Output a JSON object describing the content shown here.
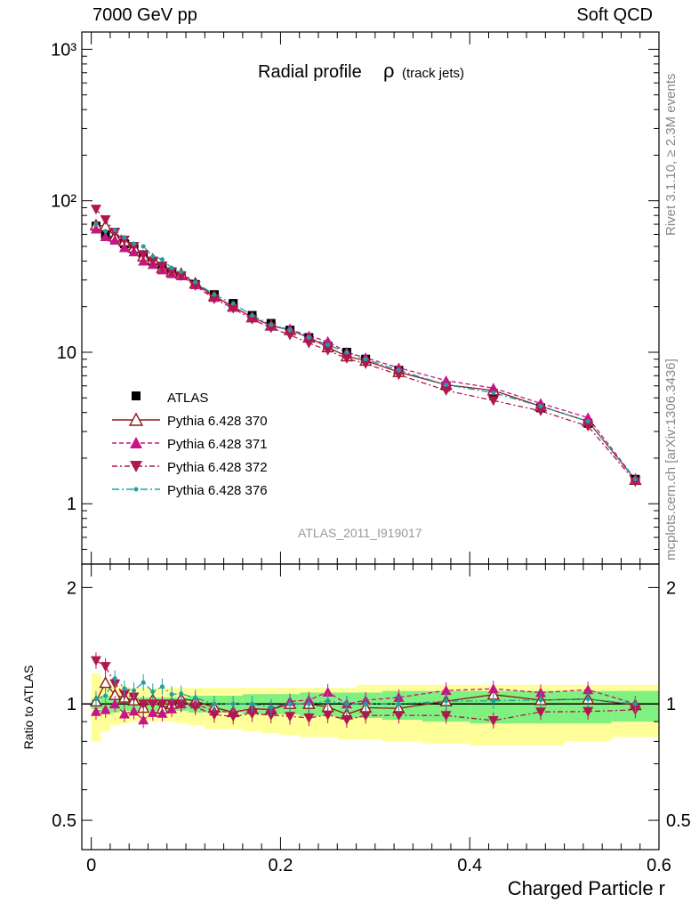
{
  "header": {
    "left": "7000 GeV pp",
    "right": "Soft QCD"
  },
  "side_labels": {
    "top": "Rivet 3.1.10, ≥ 2.3M events",
    "bottom": "mcplots.cern.ch [arXiv:1306.3436]"
  },
  "chart_data": {
    "type": "scatter",
    "title": "Radial profile",
    "title_symbol": "ρ",
    "title_suffix": "(track jets)",
    "watermark": "ATLAS_2011_I919017",
    "xlabel": "Charged Particle r",
    "ratio_ylabel": "Ratio to ATLAS",
    "xlim": [
      -0.01,
      0.6
    ],
    "ylim": [
      0.4,
      1300
    ],
    "ylog": true,
    "ratio_ylim": [
      0.42,
      2.3
    ],
    "ratio_log": true,
    "x_ticks": [
      "0",
      "0.2",
      "0.4",
      "0.6"
    ],
    "y_ticks": [
      "1",
      "10",
      "10²",
      "10³"
    ],
    "ratio_ticks": [
      "0.5",
      "1",
      "2"
    ],
    "legend_position": "lower-left",
    "x": [
      0.005,
      0.015,
      0.025,
      0.035,
      0.045,
      0.055,
      0.065,
      0.075,
      0.085,
      0.095,
      0.11,
      0.13,
      0.15,
      0.17,
      0.19,
      0.21,
      0.23,
      0.25,
      0.27,
      0.29,
      0.325,
      0.375,
      0.425,
      0.475,
      0.525,
      0.575
    ],
    "colors": {
      "data": "#000000",
      "s370": "#8b1a1a",
      "s371": "#c71585",
      "s372": "#b0174f",
      "s376": "#20a0a0",
      "band_outer": "#ffff99",
      "band_inner": "#80f080"
    },
    "series": [
      {
        "name": "ATLAS",
        "marker": "square",
        "values": [
          68,
          60,
          55,
          52,
          48,
          44,
          40,
          37,
          34,
          32,
          28,
          24,
          21,
          17.5,
          15.5,
          14,
          12.5,
          11,
          10,
          9,
          7.6,
          6.0,
          5.3,
          4.3,
          3.4,
          1.45
        ]
      },
      {
        "name": "Pythia 6.428 370",
        "marker": "open-triangle-up",
        "values": [
          69,
          68,
          58,
          54,
          49,
          43,
          41,
          36,
          34,
          33,
          28.5,
          23.5,
          20,
          17,
          15,
          14,
          12.5,
          10.8,
          9.4,
          8.8,
          7.4,
          6.1,
          5.6,
          4.4,
          3.5,
          1.44
        ]
      },
      {
        "name": "Pythia 6.428 371",
        "marker": "triangle-up",
        "values": [
          65,
          58,
          55,
          49,
          46,
          40,
          38,
          35,
          33,
          32,
          28,
          23,
          20,
          17,
          15,
          14.2,
          12.8,
          11.8,
          10.0,
          9.2,
          7.9,
          6.5,
          5.8,
          4.6,
          3.7,
          1.45
        ]
      },
      {
        "name": "Pythia 6.428 372",
        "marker": "triangle-down",
        "values": [
          88,
          75,
          62,
          55,
          50,
          44,
          40,
          37,
          34,
          32,
          27.5,
          22.5,
          19.5,
          16.5,
          14.5,
          13,
          11.5,
          10.3,
          9.1,
          8.4,
          7.1,
          5.6,
          4.8,
          4.1,
          3.25,
          1.4
        ]
      },
      {
        "name": "Pythia 6.428 376",
        "marker": "dot",
        "values": [
          70,
          63,
          64,
          57,
          52,
          50,
          43,
          41,
          36,
          34,
          29,
          24,
          21,
          17.5,
          15.2,
          14,
          12.5,
          11.2,
          10.0,
          9.0,
          7.6,
          6.1,
          5.4,
          4.4,
          3.5,
          1.45
        ]
      }
    ],
    "ratio_bands": {
      "inner_lo": [
        0.97,
        0.95,
        0.95,
        0.96,
        0.96,
        0.96,
        0.96,
        0.96,
        0.96,
        0.96,
        0.95,
        0.95,
        0.95,
        0.94,
        0.94,
        0.94,
        0.93,
        0.93,
        0.92,
        0.92,
        0.91,
        0.9,
        0.89,
        0.89,
        0.89,
        0.9
      ],
      "inner_hi": [
        1.03,
        1.05,
        1.05,
        1.04,
        1.04,
        1.04,
        1.04,
        1.04,
        1.04,
        1.04,
        1.05,
        1.05,
        1.05,
        1.06,
        1.06,
        1.06,
        1.07,
        1.07,
        1.07,
        1.07,
        1.08,
        1.08,
        1.08,
        1.08,
        1.08,
        1.08
      ],
      "outer_lo": [
        0.8,
        0.85,
        0.88,
        0.89,
        0.9,
        0.9,
        0.9,
        0.9,
        0.9,
        0.89,
        0.88,
        0.86,
        0.86,
        0.85,
        0.84,
        0.83,
        0.82,
        0.82,
        0.81,
        0.81,
        0.8,
        0.79,
        0.78,
        0.78,
        0.8,
        0.82
      ],
      "outer_hi": [
        1.2,
        1.15,
        1.12,
        1.11,
        1.1,
        1.1,
        1.1,
        1.1,
        1.1,
        1.1,
        1.1,
        1.1,
        1.1,
        1.1,
        1.1,
        1.1,
        1.1,
        1.1,
        1.1,
        1.12,
        1.12,
        1.12,
        1.12,
        1.12,
        1.12,
        1.12
      ]
    }
  }
}
